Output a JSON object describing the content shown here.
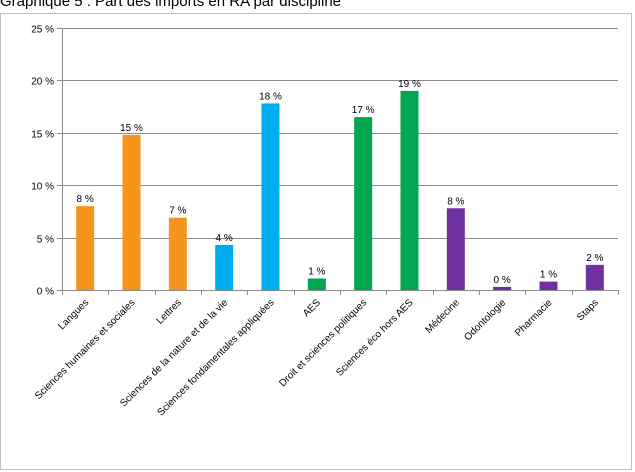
{
  "chart_data": {
    "type": "bar",
    "title": "Graphique 5 : Part des imports en RA par discipline",
    "xlabel": "",
    "ylabel": "",
    "ylim": [
      0,
      25
    ],
    "yticks": [
      0,
      5,
      10,
      15,
      20,
      25
    ],
    "ytick_labels": [
      "0 %",
      "5 %",
      "10 %",
      "15 %",
      "20 %",
      "25 %"
    ],
    "grid": true,
    "legend": "none",
    "categories": [
      "Langues",
      "Sciences humaines et sociales",
      "Lettres",
      "Sciences de la nature et de la vie",
      "Sciences fondamentales appliquées",
      "AES",
      "Droit et sciences politiques",
      "Sciences éco hors AES",
      "Médecine",
      "Odontologie",
      "Pharmacie",
      "Staps"
    ],
    "values": [
      8,
      14.8,
      6.9,
      4.3,
      17.8,
      1.1,
      16.5,
      19,
      7.8,
      0.3,
      0.8,
      2.4
    ],
    "data_labels": [
      "8 %",
      "15 %",
      "7 %",
      "4 %",
      "18 %",
      "1 %",
      "17 %",
      "19 %",
      "8 %",
      "0 %",
      "1 %",
      "2 %"
    ],
    "colors": [
      "#f7941d",
      "#f7941d",
      "#f7941d",
      "#00aeef",
      "#00aeef",
      "#00a651",
      "#00a651",
      "#00a651",
      "#7030a0",
      "#7030a0",
      "#7030a0",
      "#7030a0"
    ]
  }
}
